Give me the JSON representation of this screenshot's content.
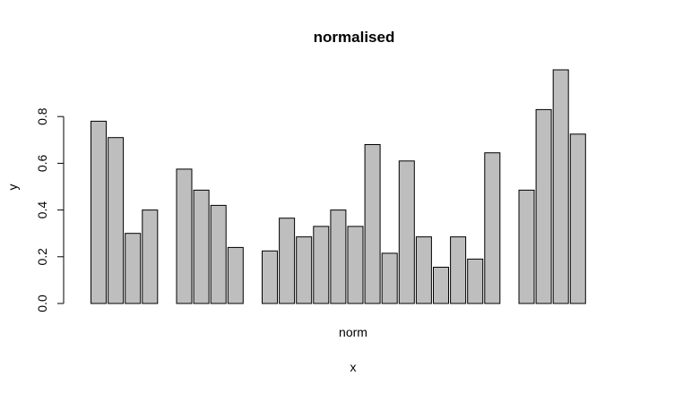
{
  "chart_data": {
    "type": "bar",
    "title": "normalised",
    "xlabel": "x",
    "ylabel": "y",
    "group_label": "norm",
    "ylim": [
      0,
      1
    ],
    "yticks": [
      0.0,
      0.2,
      0.4,
      0.6,
      0.8
    ],
    "ytick_labels": [
      "0.0",
      "0.2",
      "0.4",
      "0.6",
      "0.8"
    ],
    "groups": [
      {
        "values": [
          0.78,
          0.71,
          0.3,
          0.4
        ]
      },
      {
        "values": [
          0.575,
          0.485,
          0.42,
          0.24
        ]
      },
      {
        "values": [
          0.225,
          0.365,
          0.285,
          0.33,
          0.4,
          0.33,
          0.68,
          0.215,
          0.61,
          0.285,
          0.155,
          0.285,
          0.19,
          0.645
        ]
      },
      {
        "values": [
          0.485,
          0.83,
          1.0,
          0.725
        ]
      }
    ],
    "bar_color": "#bebebe",
    "grid": false,
    "legend": "none"
  }
}
